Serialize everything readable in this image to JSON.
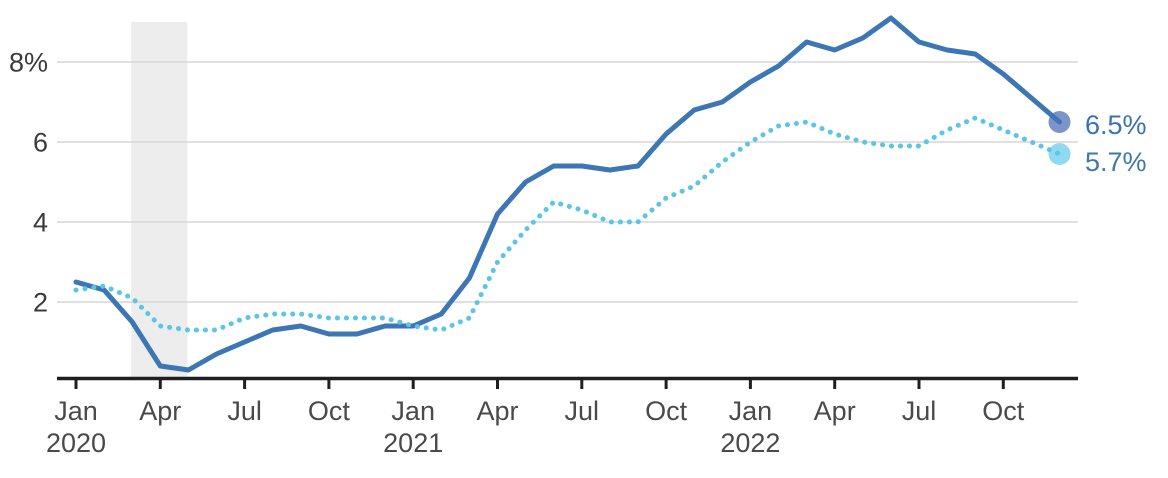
{
  "chart_data": {
    "type": "line",
    "x": [
      "Jan 2020",
      "Feb 2020",
      "Mar 2020",
      "Apr 2020",
      "May 2020",
      "Jun 2020",
      "Jul 2020",
      "Aug 2020",
      "Sep 2020",
      "Oct 2020",
      "Nov 2020",
      "Dec 2020",
      "Jan 2021",
      "Feb 2021",
      "Mar 2021",
      "Apr 2021",
      "May 2021",
      "Jun 2021",
      "Jul 2021",
      "Aug 2021",
      "Sep 2021",
      "Oct 2021",
      "Nov 2021",
      "Dec 2021",
      "Jan 2022",
      "Feb 2022",
      "Mar 2022",
      "Apr 2022",
      "May 2022",
      "Jun 2022",
      "Jul 2022",
      "Aug 2022",
      "Sep 2022",
      "Oct 2022",
      "Nov 2022",
      "Dec 2022"
    ],
    "x_ticks": [
      {
        "i": 0,
        "label": "Jan",
        "year": "2020"
      },
      {
        "i": 3,
        "label": "Apr"
      },
      {
        "i": 6,
        "label": "Jul"
      },
      {
        "i": 9,
        "label": "Oct"
      },
      {
        "i": 12,
        "label": "Jan",
        "year": "2021"
      },
      {
        "i": 15,
        "label": "Apr"
      },
      {
        "i": 18,
        "label": "Jul"
      },
      {
        "i": 21,
        "label": "Oct"
      },
      {
        "i": 24,
        "label": "Jan",
        "year": "2022"
      },
      {
        "i": 27,
        "label": "Apr"
      },
      {
        "i": 30,
        "label": "Jul"
      },
      {
        "i": 33,
        "label": "Oct"
      }
    ],
    "y_ticks": [
      {
        "value": 8,
        "label": "8%"
      },
      {
        "value": 6,
        "label": "6"
      },
      {
        "value": 4,
        "label": "4"
      },
      {
        "value": 2,
        "label": "2"
      }
    ],
    "ylim": [
      0,
      9.5
    ],
    "grid": true,
    "legend_position": "end-of-line labels",
    "series": [
      {
        "name": "solid",
        "line_style": "solid",
        "color": "#3c76b4",
        "marker_color": "#7d94c8",
        "end_label": "6.5%",
        "end_label_color": "#3a71b2",
        "values": [
          2.5,
          2.3,
          1.5,
          0.4,
          0.3,
          0.7,
          1.0,
          1.3,
          1.4,
          1.2,
          1.2,
          1.4,
          1.4,
          1.7,
          2.6,
          4.2,
          5.0,
          5.4,
          5.4,
          5.3,
          5.4,
          6.2,
          6.8,
          7.0,
          7.5,
          7.9,
          8.5,
          8.3,
          8.6,
          9.1,
          8.5,
          8.3,
          8.2,
          7.7,
          7.1,
          6.5
        ]
      },
      {
        "name": "dotted",
        "line_style": "dotted",
        "color": "#5bc5e6",
        "marker_color": "#91d9f0",
        "end_label": "5.7%",
        "end_label_color": "#3e7aa3",
        "values": [
          2.3,
          2.4,
          2.1,
          1.4,
          1.3,
          1.3,
          1.6,
          1.7,
          1.7,
          1.6,
          1.6,
          1.6,
          1.4,
          1.3,
          1.6,
          3.0,
          3.8,
          4.5,
          4.3,
          4.0,
          4.0,
          4.6,
          4.9,
          5.5,
          6.0,
          6.4,
          6.5,
          6.2,
          6.0,
          5.9,
          5.9,
          6.3,
          6.6,
          6.3,
          6.0,
          5.7
        ]
      }
    ],
    "shaded_band": {
      "from": "Mar 2020",
      "to": "May 2020",
      "color": "#ededed"
    }
  }
}
